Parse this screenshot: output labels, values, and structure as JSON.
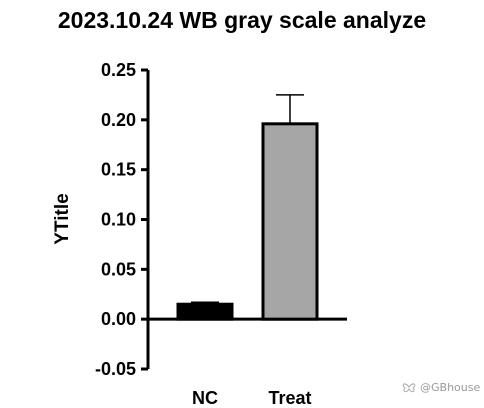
{
  "chart_data": {
    "type": "bar",
    "title": "2023.10.24 WB gray scale analyze",
    "xlabel": "",
    "ylabel": "YTitle",
    "categories": [
      "NC",
      "Treat"
    ],
    "values": [
      0.015,
      0.196
    ],
    "error": [
      0.002,
      0.029
    ],
    "ylim": [
      -0.05,
      0.25
    ],
    "yticks": [
      -0.05,
      0.0,
      0.05,
      0.1,
      0.15,
      0.2,
      0.25
    ],
    "ytick_labels": [
      "-0.05",
      "0.00",
      "0.05",
      "0.10",
      "0.15",
      "0.20",
      "0.25"
    ],
    "bar_colors": [
      "#000000",
      "#a6a6a6"
    ],
    "grid": false,
    "legend": "none"
  },
  "watermark": {
    "text": "@GBhouse",
    "icon": "butterfly-icon"
  }
}
